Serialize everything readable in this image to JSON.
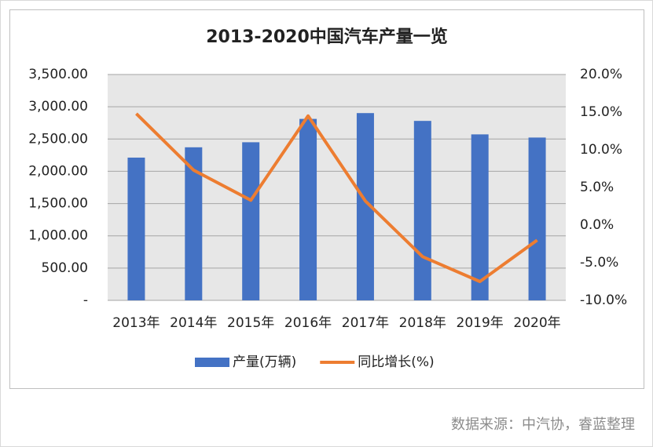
{
  "chart_data": {
    "type": "bar",
    "title": "2013-2020中国汽车产量一览",
    "categories": [
      "2013年",
      "2014年",
      "2015年",
      "2016年",
      "2017年",
      "2018年",
      "2019年",
      "2020年"
    ],
    "series": [
      {
        "name": "产量(万辆)",
        "color": "#4472c4",
        "values": [
          2212,
          2372,
          2450,
          2812,
          2902,
          2781,
          2572,
          2523
        ]
      },
      {
        "name": "同比增长(%)",
        "color": "#ed7d31",
        "type": "line",
        "axis": "y2",
        "values": [
          14.8,
          7.3,
          3.3,
          14.5,
          3.2,
          -4.2,
          -7.5,
          -2.0
        ]
      }
    ],
    "ylim": [
      0,
      3500
    ],
    "yticks": [
      {
        "value": 0,
        "label": "-"
      },
      {
        "value": 500,
        "label": "500.00"
      },
      {
        "value": 1000,
        "label": "1,000.00"
      },
      {
        "value": 1500,
        "label": "1,500.00"
      },
      {
        "value": 2000,
        "label": "2,000.00"
      },
      {
        "value": 2500,
        "label": "2,500.00"
      },
      {
        "value": 3000,
        "label": "3,000.00"
      },
      {
        "value": 3500,
        "label": "3,500.00"
      }
    ],
    "y2lim": [
      -10,
      20
    ],
    "y2ticks": [
      {
        "value": -10,
        "label": "-10.0%"
      },
      {
        "value": -5,
        "label": "-5.0%"
      },
      {
        "value": 0,
        "label": "0.0%"
      },
      {
        "value": 5,
        "label": "5.0%"
      },
      {
        "value": 10,
        "label": "10.0%"
      },
      {
        "value": 15,
        "label": "15.0%"
      },
      {
        "value": 20,
        "label": "20.0%"
      }
    ],
    "grid": true,
    "legend": "bottom",
    "source": "数据来源：中汽协，睿蓝整理"
  }
}
